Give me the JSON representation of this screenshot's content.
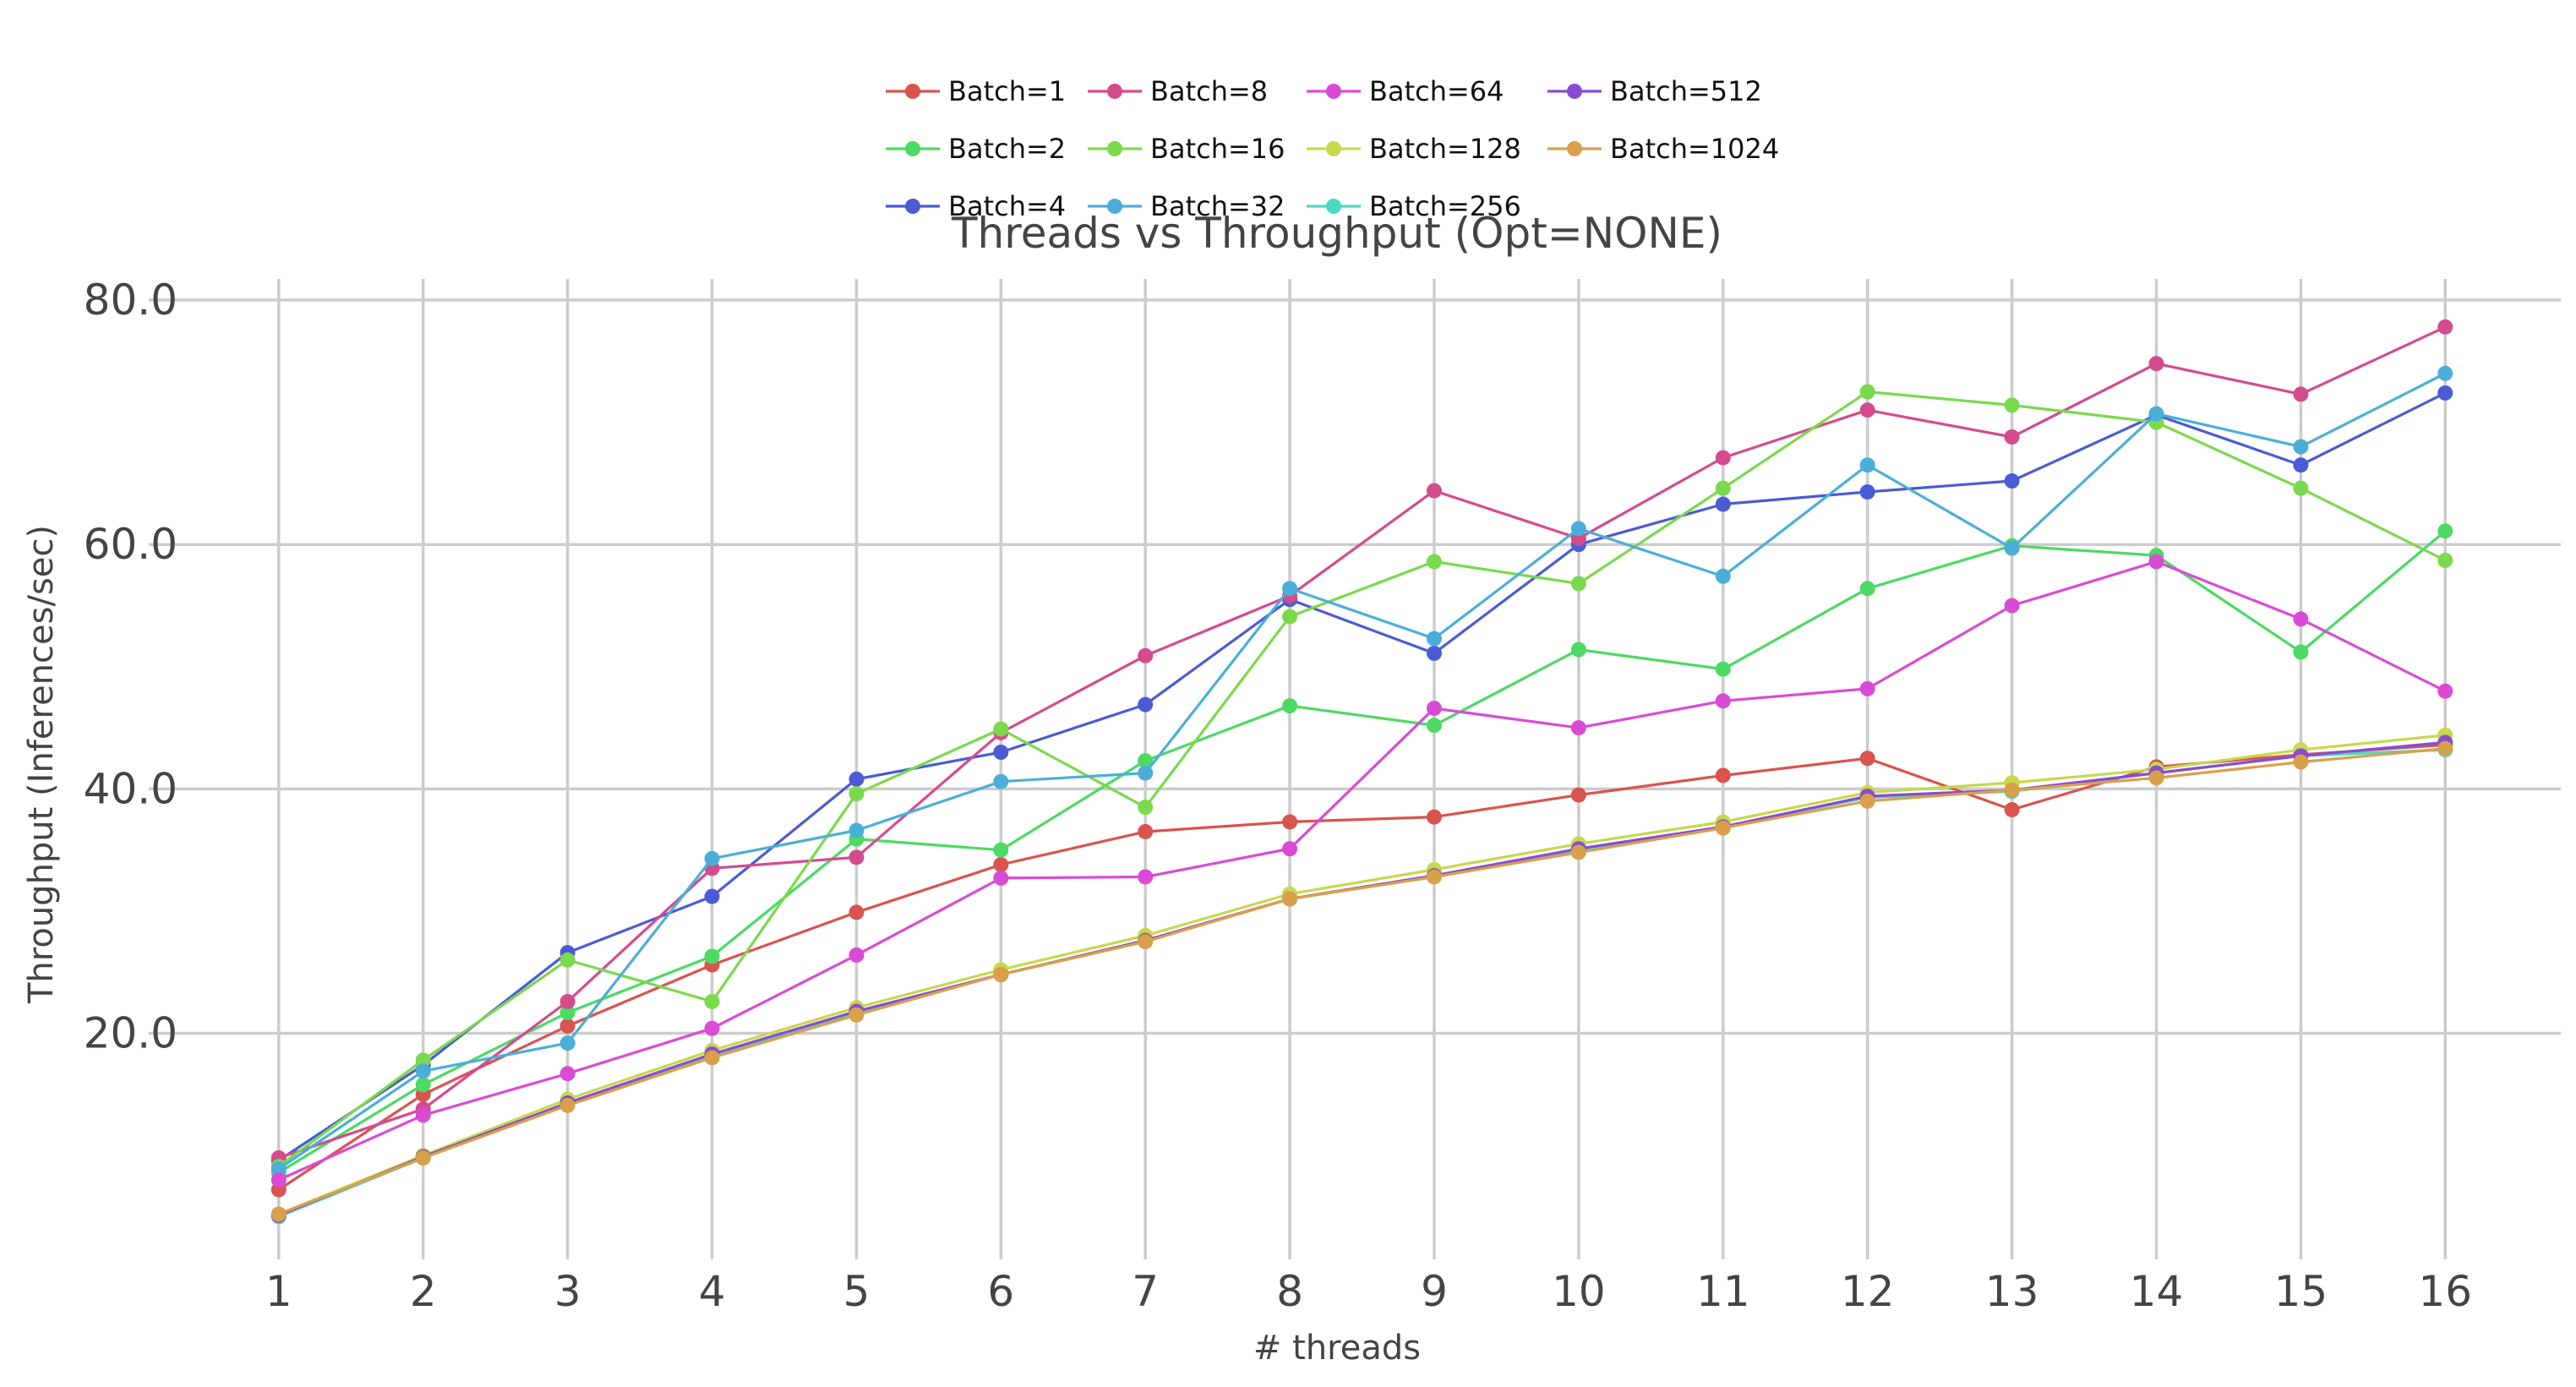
{
  "chart_data": {
    "type": "line",
    "title": "Threads vs Throughput (Opt=NONE)",
    "xlabel": "# threads",
    "ylabel": "Throughput (Inferences/sec)",
    "x": [
      1,
      2,
      3,
      4,
      5,
      6,
      7,
      8,
      9,
      10,
      11,
      12,
      13,
      14,
      15,
      16
    ],
    "x_tick_labels": [
      "1",
      "2",
      "3",
      "4",
      "5",
      "6",
      "7",
      "8",
      "9",
      "10",
      "11",
      "12",
      "13",
      "14",
      "15",
      "16"
    ],
    "y_ticks": [
      20,
      40,
      60,
      80
    ],
    "y_tick_labels": [
      "20.0",
      "40.0",
      "60.0",
      "80.0"
    ],
    "xlim": [
      0.1,
      16.8
    ],
    "ylim": [
      1.5,
      84.5
    ],
    "grid": true,
    "legend_position": "top-center",
    "series": [
      {
        "name": "Batch=1",
        "color": "#d9534f",
        "values": [
          7.2,
          15.0,
          20.6,
          25.6,
          29.9,
          33.8,
          36.5,
          37.3,
          37.7,
          39.5,
          41.1,
          42.5,
          38.3,
          41.8,
          42.8,
          43.6
        ]
      },
      {
        "name": "Batch=2",
        "color": "#4cd964",
        "values": [
          8.6,
          15.8,
          21.7,
          26.3,
          35.9,
          35.0,
          42.3,
          46.8,
          45.2,
          51.4,
          49.8,
          56.4,
          59.9,
          59.1,
          51.2,
          61.1
        ]
      },
      {
        "name": "Batch=4",
        "color": "#4b5bd4",
        "values": [
          9.6,
          17.4,
          26.6,
          31.2,
          40.8,
          43.0,
          46.9,
          55.5,
          51.1,
          60.0,
          63.3,
          64.3,
          65.2,
          70.6,
          66.5,
          72.4
        ]
      },
      {
        "name": "Batch=8",
        "color": "#d44b8e",
        "values": [
          9.8,
          13.8,
          22.6,
          33.5,
          34.4,
          44.6,
          50.9,
          55.8,
          64.4,
          60.5,
          67.1,
          71.0,
          68.8,
          74.8,
          72.3,
          77.8
        ]
      },
      {
        "name": "Batch=16",
        "color": "#7bd94c",
        "values": [
          9.1,
          17.8,
          26.0,
          22.6,
          39.6,
          44.9,
          38.5,
          54.1,
          58.6,
          56.8,
          64.6,
          72.5,
          71.4,
          70.0,
          64.6,
          58.7
        ]
      },
      {
        "name": "Batch=32",
        "color": "#4baed9",
        "values": [
          8.9,
          16.9,
          19.2,
          34.3,
          36.6,
          40.6,
          41.3,
          56.4,
          52.3,
          61.3,
          57.4,
          66.5,
          59.7,
          70.7,
          68.0,
          74.0
        ]
      },
      {
        "name": "Batch=64",
        "color": "#d94bd4",
        "values": [
          8.0,
          13.3,
          16.7,
          20.4,
          26.4,
          32.7,
          32.8,
          35.1,
          46.6,
          45.0,
          47.2,
          48.2,
          55.0,
          58.6,
          53.9,
          48.0
        ]
      },
      {
        "name": "Batch=128",
        "color": "#c5d94b",
        "values": [
          5.2,
          10.0,
          14.6,
          18.6,
          22.1,
          25.2,
          28.0,
          31.4,
          33.4,
          35.5,
          37.3,
          39.7,
          40.5,
          41.6,
          43.2,
          44.4
        ]
      },
      {
        "name": "Batch=256",
        "color": "#4bd9c0",
        "values": [
          5.0,
          9.8,
          14.3,
          18.2,
          21.7,
          24.8,
          27.6,
          31.0,
          32.9,
          35.0,
          36.9,
          39.3,
          39.8,
          41.3,
          42.7,
          43.2
        ]
      },
      {
        "name": "Batch=512",
        "color": "#8a4bd4",
        "values": [
          5.1,
          9.9,
          14.3,
          18.3,
          21.8,
          24.8,
          27.6,
          31.0,
          32.9,
          35.1,
          36.9,
          39.4,
          39.9,
          41.3,
          42.7,
          43.8
        ]
      },
      {
        "name": "Batch=1024",
        "color": "#d9a04b",
        "values": [
          5.2,
          9.8,
          14.1,
          18.0,
          21.5,
          24.8,
          27.5,
          31.0,
          32.8,
          34.8,
          36.8,
          39.0,
          39.9,
          40.9,
          42.2,
          43.3
        ]
      }
    ]
  }
}
